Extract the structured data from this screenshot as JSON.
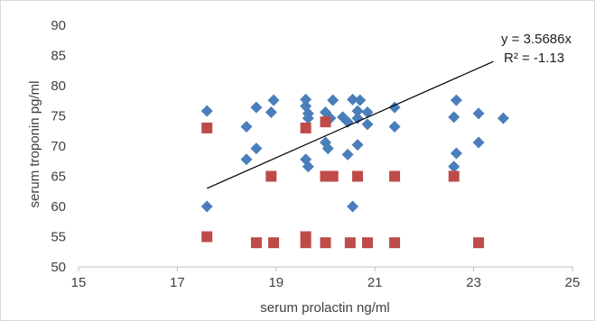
{
  "chart_data": {
    "type": "scatter",
    "xlabel": "serum prolactin ng/ml",
    "ylabel": "serum troponin pg/ml",
    "xlim": [
      15,
      25
    ],
    "ylim": [
      50,
      90
    ],
    "x_ticks": [
      15,
      17,
      19,
      21,
      23,
      25
    ],
    "y_ticks": [
      50,
      55,
      60,
      65,
      70,
      75,
      80,
      85,
      90
    ],
    "grid": false,
    "legend": "none",
    "series": [
      {
        "marker": "diamond",
        "color": "#4a7ebb",
        "points": [
          [
            17.6,
            75.8
          ],
          [
            17.6,
            60.0
          ],
          [
            18.4,
            73.2
          ],
          [
            18.4,
            67.8
          ],
          [
            18.6,
            76.4
          ],
          [
            18.6,
            69.6
          ],
          [
            18.9,
            75.6
          ],
          [
            18.95,
            77.6
          ],
          [
            19.6,
            77.7
          ],
          [
            19.6,
            76.6
          ],
          [
            19.65,
            75.4
          ],
          [
            19.65,
            74.6
          ],
          [
            19.6,
            67.8
          ],
          [
            19.65,
            66.6
          ],
          [
            20.0,
            75.6
          ],
          [
            20.0,
            70.6
          ],
          [
            20.05,
            69.6
          ],
          [
            20.1,
            74.6
          ],
          [
            20.15,
            77.6
          ],
          [
            20.35,
            74.8
          ],
          [
            20.45,
            74.0
          ],
          [
            20.45,
            68.6
          ],
          [
            20.55,
            77.7
          ],
          [
            20.55,
            60.0
          ],
          [
            20.65,
            75.8
          ],
          [
            20.65,
            74.6
          ],
          [
            20.7,
            77.6
          ],
          [
            20.65,
            70.2
          ],
          [
            20.85,
            75.6
          ],
          [
            20.85,
            73.6
          ],
          [
            21.4,
            76.4
          ],
          [
            21.4,
            73.2
          ],
          [
            22.6,
            74.8
          ],
          [
            22.65,
            77.6
          ],
          [
            22.65,
            68.8
          ],
          [
            22.6,
            66.6
          ],
          [
            23.1,
            75.4
          ],
          [
            23.1,
            70.6
          ],
          [
            23.6,
            74.6
          ]
        ]
      },
      {
        "marker": "square",
        "color": "#be4b48",
        "points": [
          [
            17.6,
            73.0
          ],
          [
            17.6,
            55.0
          ],
          [
            18.6,
            54.0
          ],
          [
            18.9,
            65.0
          ],
          [
            18.95,
            54.0
          ],
          [
            19.6,
            73.0
          ],
          [
            19.6,
            55.0
          ],
          [
            19.6,
            54.0
          ],
          [
            20.0,
            74.0
          ],
          [
            20.0,
            65.0
          ],
          [
            20.15,
            65.0
          ],
          [
            20.0,
            54.0
          ],
          [
            20.5,
            54.0
          ],
          [
            20.65,
            65.0
          ],
          [
            20.85,
            54.0
          ],
          [
            21.4,
            65.0
          ],
          [
            21.4,
            54.0
          ],
          [
            22.6,
            65.0
          ],
          [
            23.1,
            54.0
          ]
        ]
      }
    ],
    "trendline": {
      "type": "linear",
      "x_range": [
        17.6,
        23.4
      ],
      "y_range": [
        63.0,
        84.0
      ],
      "color": "#000000",
      "equation": "y = 3.5686x",
      "r_squared": "R² = -1.13"
    },
    "colors": {
      "axis": "#bfbfbf",
      "text": "#404040"
    }
  }
}
